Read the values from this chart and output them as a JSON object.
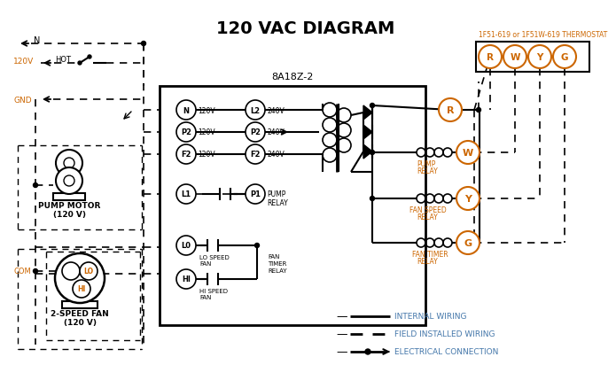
{
  "title": "120 VAC DIAGRAM",
  "title_fontsize": 14,
  "title_fontweight": "bold",
  "bg_color": "#ffffff",
  "text_color": "#000000",
  "orange_color": "#cc6600",
  "blue_color": "#4477aa",
  "diagram_label": "8A18Z-2",
  "thermostat_label": "1F51-619 or 1F51W-619 THERMOSTAT",
  "legend_items": [
    {
      "label": "INTERNAL WIRING",
      "style": "solid"
    },
    {
      "label": "FIELD INSTALLED WIRING",
      "style": "dashed"
    },
    {
      "label": "ELECTRICAL CONNECTION",
      "style": "dot_arrow"
    }
  ],
  "terminal_labels": [
    "R",
    "W",
    "Y",
    "G"
  ]
}
